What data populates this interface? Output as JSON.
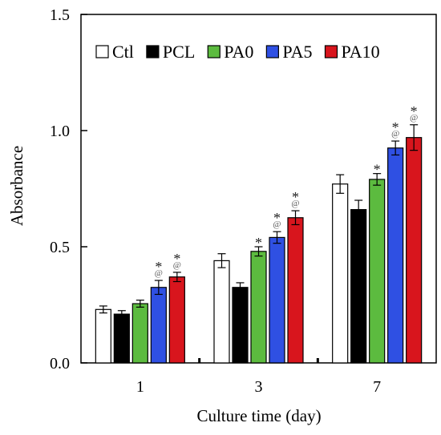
{
  "chart_data": {
    "type": "bar",
    "xlabel": "Culture time (day)",
    "ylabel": "Absorbance",
    "ylim": [
      0,
      1.5
    ],
    "yticks": [
      "0.0",
      "0.5",
      "1.0",
      "1.5"
    ],
    "categories": [
      "1",
      "3",
      "7"
    ],
    "legend_position": "top",
    "series": [
      {
        "name": "Ctl",
        "color": "#ffffff",
        "values": [
          0.23,
          0.44,
          0.77
        ],
        "errors": [
          0.015,
          0.03,
          0.04
        ],
        "stars": [
          false,
          false,
          false
        ],
        "ats": [
          false,
          false,
          false
        ]
      },
      {
        "name": "PCL",
        "color": "#000000",
        "values": [
          0.21,
          0.325,
          0.66
        ],
        "errors": [
          0.015,
          0.02,
          0.04
        ],
        "stars": [
          false,
          false,
          false
        ],
        "ats": [
          false,
          false,
          false
        ]
      },
      {
        "name": "PA0",
        "color": "#5cbb3f",
        "values": [
          0.255,
          0.48,
          0.79
        ],
        "errors": [
          0.015,
          0.02,
          0.025
        ],
        "stars": [
          false,
          true,
          true
        ],
        "ats": [
          false,
          false,
          false
        ]
      },
      {
        "name": "PA5",
        "color": "#2f50e3",
        "values": [
          0.325,
          0.54,
          0.925
        ],
        "errors": [
          0.03,
          0.025,
          0.03
        ],
        "stars": [
          true,
          true,
          true
        ],
        "ats": [
          true,
          true,
          true
        ]
      },
      {
        "name": "PA10",
        "color": "#d8151d",
        "values": [
          0.37,
          0.625,
          0.97
        ],
        "errors": [
          0.02,
          0.03,
          0.055
        ],
        "stars": [
          true,
          true,
          true
        ],
        "ats": [
          true,
          true,
          true
        ]
      }
    ],
    "annotation_marks": {
      "star": "*",
      "at": "@"
    }
  }
}
